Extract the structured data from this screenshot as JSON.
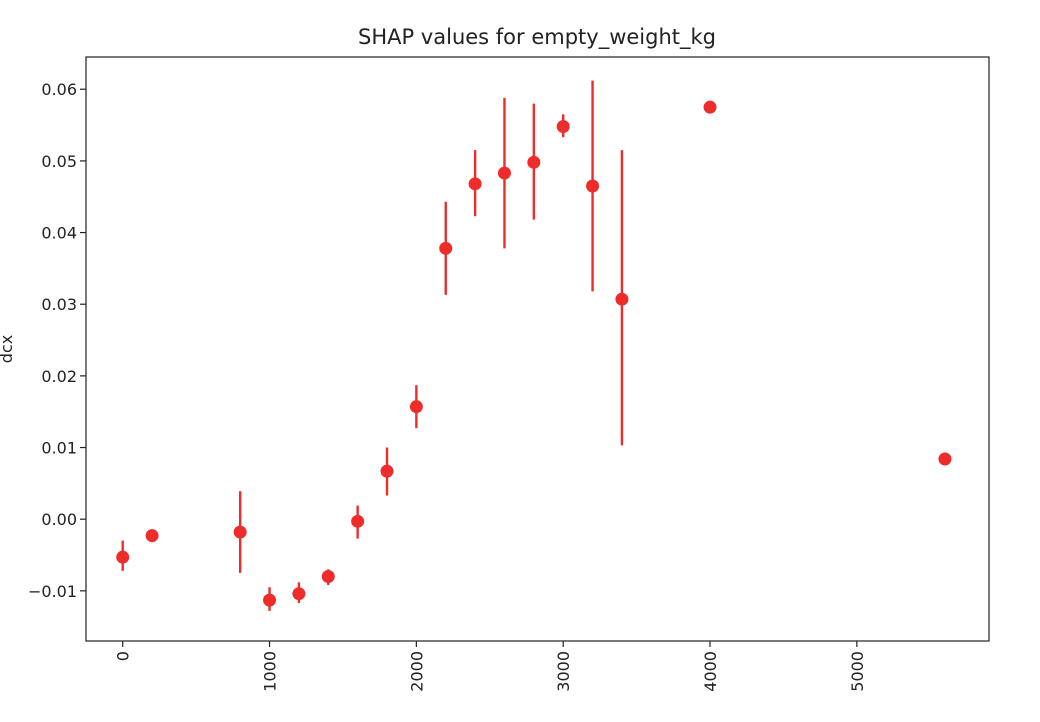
{
  "chart_data": {
    "type": "scatter",
    "title": "SHAP values for empty_weight_kg",
    "xlabel": "",
    "ylabel": "dcx",
    "xlim": [
      -250,
      5900
    ],
    "ylim": [
      -0.017,
      0.0645
    ],
    "x_ticks": [
      0,
      1000,
      2000,
      3000,
      4000,
      5000
    ],
    "x_tick_labels": [
      "0",
      "1000",
      "2000",
      "3000",
      "4000",
      "5000"
    ],
    "y_ticks": [
      -0.01,
      0.0,
      0.01,
      0.02,
      0.03,
      0.04,
      0.05,
      0.06
    ],
    "y_tick_labels": [
      "−0.01",
      "0.00",
      "0.01",
      "0.02",
      "0.03",
      "0.04",
      "0.05",
      "0.06"
    ],
    "grid": false,
    "marker_color": "#ee2c2c",
    "errorbar_color": "#ee2c2c",
    "points": [
      {
        "x": 0,
        "y": -0.0053,
        "ylo": -0.0072,
        "yhi": -0.003
      },
      {
        "x": 200,
        "y": -0.0023,
        "ylo": -0.0023,
        "yhi": -0.0023
      },
      {
        "x": 800,
        "y": -0.0018,
        "ylo": -0.0075,
        "yhi": 0.0039
      },
      {
        "x": 1000,
        "y": -0.0113,
        "ylo": -0.0128,
        "yhi": -0.0095
      },
      {
        "x": 1200,
        "y": -0.0104,
        "ylo": -0.0117,
        "yhi": -0.0088
      },
      {
        "x": 1400,
        "y": -0.008,
        "ylo": -0.0092,
        "yhi": -0.007
      },
      {
        "x": 1600,
        "y": -0.0003,
        "ylo": -0.0027,
        "yhi": 0.0019
      },
      {
        "x": 1800,
        "y": 0.0067,
        "ylo": 0.0033,
        "yhi": 0.01
      },
      {
        "x": 2000,
        "y": 0.0157,
        "ylo": 0.0127,
        "yhi": 0.0187
      },
      {
        "x": 2200,
        "y": 0.0378,
        "ylo": 0.0313,
        "yhi": 0.0443
      },
      {
        "x": 2400,
        "y": 0.0468,
        "ylo": 0.0423,
        "yhi": 0.0515
      },
      {
        "x": 2600,
        "y": 0.0483,
        "ylo": 0.0378,
        "yhi": 0.0588
      },
      {
        "x": 2800,
        "y": 0.0498,
        "ylo": 0.0418,
        "yhi": 0.058
      },
      {
        "x": 3000,
        "y": 0.0548,
        "ylo": 0.0533,
        "yhi": 0.0565
      },
      {
        "x": 3200,
        "y": 0.0465,
        "ylo": 0.0318,
        "yhi": 0.0612
      },
      {
        "x": 3400,
        "y": 0.0307,
        "ylo": 0.0103,
        "yhi": 0.0515
      },
      {
        "x": 4000,
        "y": 0.0575,
        "ylo": 0.0575,
        "yhi": 0.0575
      },
      {
        "x": 5600,
        "y": 0.0084,
        "ylo": 0.0084,
        "yhi": 0.0084
      }
    ]
  }
}
